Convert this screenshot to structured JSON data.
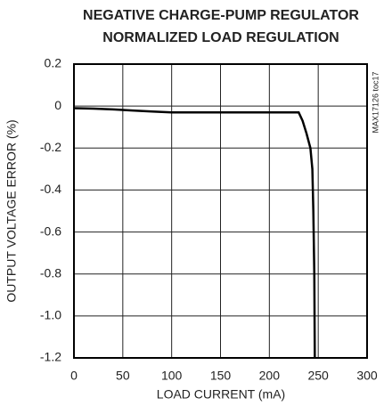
{
  "chart_data": {
    "type": "line",
    "title": "NEGATIVE CHARGE-PUMP REGULATOR",
    "subtitle": "NORMALIZED LOAD REGULATION",
    "annotation": "MAX17126 toc17",
    "x_label": "LOAD CURRENT (mA)",
    "y_label": "OUTPUT VOLTAGE ERROR (%)",
    "xlim": [
      0,
      300
    ],
    "xticks": [
      0,
      50,
      100,
      150,
      200,
      250,
      300
    ],
    "ylim": [
      -1.2,
      0.2
    ],
    "yticks": [
      0.2,
      0,
      -0.2,
      -0.4,
      -0.6,
      -0.8,
      {
        "value": -1.0,
        "label": "-1.0"
      },
      -1.2
    ],
    "grid": true,
    "series": [
      {
        "color": "#000000",
        "x": [
          0,
          20,
          40,
          60,
          80,
          100,
          150,
          200,
          230,
          234,
          238,
          242,
          244,
          245,
          246,
          246.5
        ],
        "values": [
          -0.01,
          -0.012,
          -0.016,
          -0.021,
          -0.026,
          -0.03,
          -0.03,
          -0.03,
          -0.03,
          -0.07,
          -0.13,
          -0.2,
          -0.3,
          -0.5,
          -0.8,
          -1.2
        ]
      }
    ]
  }
}
